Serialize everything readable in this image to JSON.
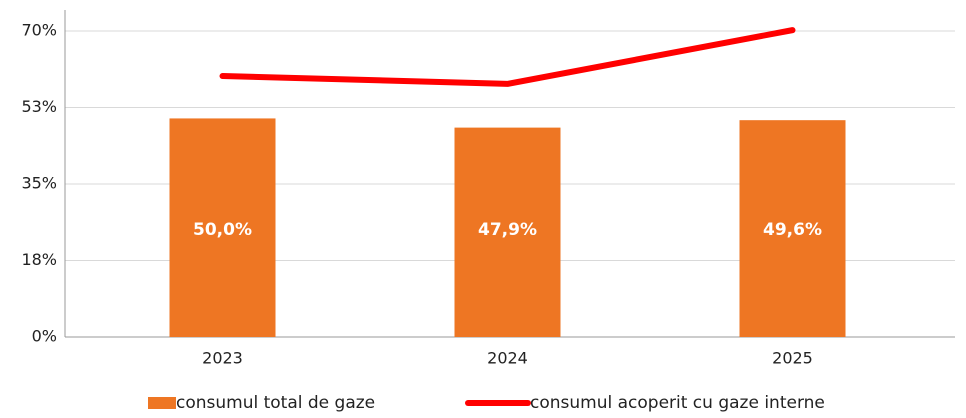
{
  "chart_data": {
    "type": "bar",
    "categories": [
      "2023",
      "2024",
      "2025"
    ],
    "series": [
      {
        "name": "consumul total de gaze",
        "type": "bar",
        "color": "#ee7623",
        "values": [
          50.0,
          47.9,
          49.6
        ],
        "value_labels": [
          "50,0%",
          "47,9%",
          "49,6%"
        ]
      },
      {
        "name": "consumul acoperit cu gaze interne",
        "type": "line",
        "color": "#ff0000",
        "values": [
          59.7,
          57.9,
          70.2
        ]
      }
    ],
    "ylim": [
      0,
      70
    ],
    "yticks": [
      {
        "value": 0,
        "label": "0%"
      },
      {
        "value": 17.5,
        "label": "18%"
      },
      {
        "value": 35,
        "label": "35%"
      },
      {
        "value": 52.5,
        "label": "53%"
      },
      {
        "value": 70,
        "label": "70%"
      }
    ],
    "grid": true,
    "legend": "bottom"
  }
}
